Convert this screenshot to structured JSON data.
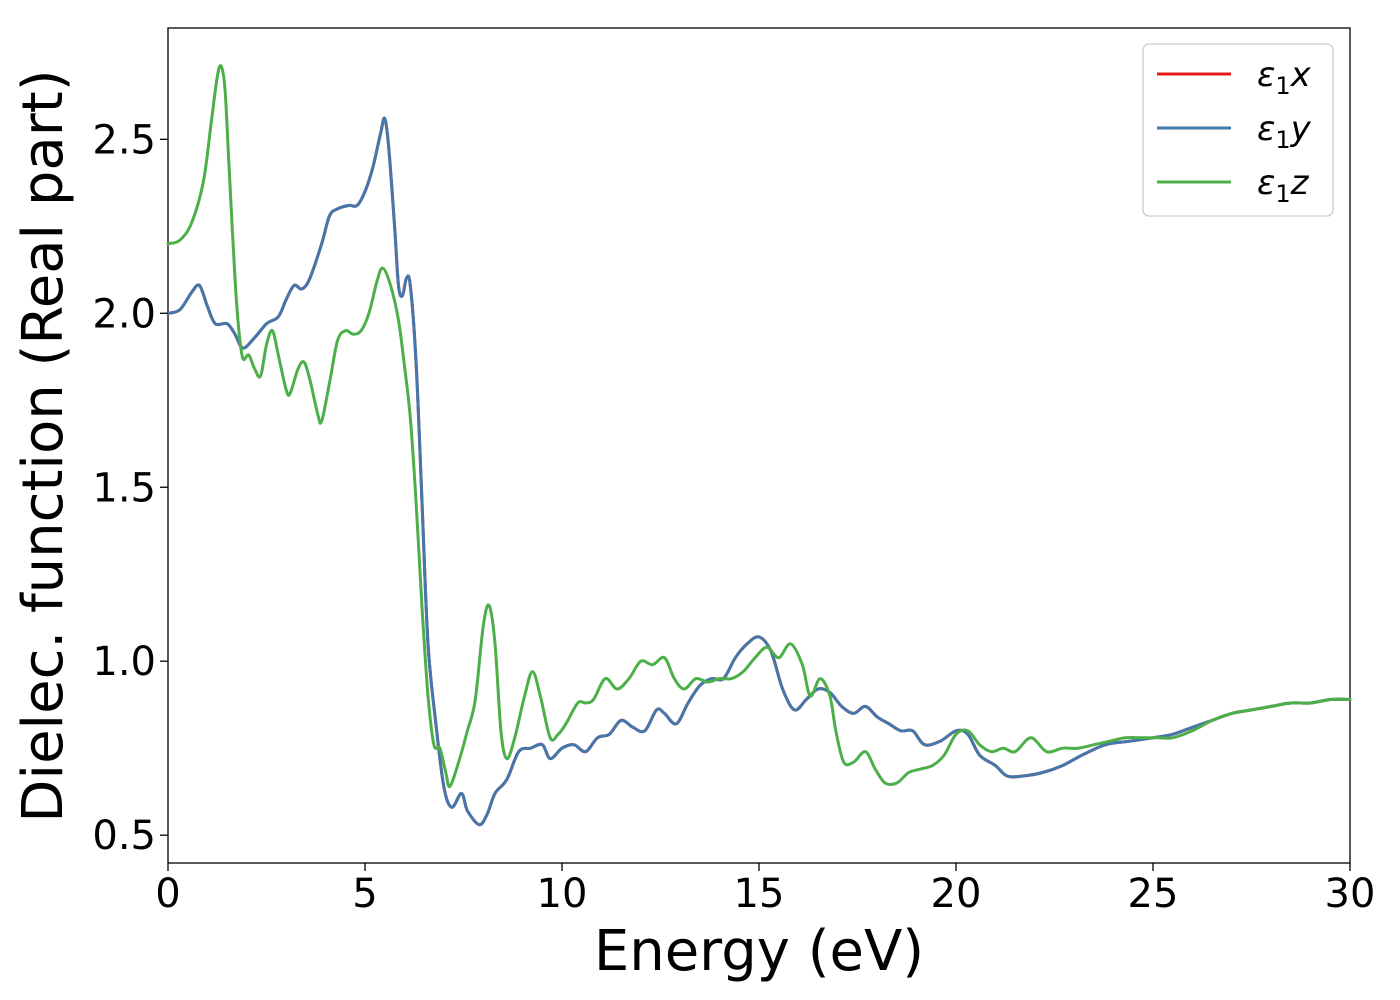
{
  "chart_data": {
    "type": "line",
    "xlabel": "Energy (eV)",
    "ylabel": "Dielec. function (Real part)",
    "xlim": [
      0,
      30
    ],
    "ylim": [
      0.42,
      2.82
    ],
    "xticks": [
      0,
      5,
      10,
      15,
      20,
      25,
      30
    ],
    "yticks": [
      0.5,
      1.0,
      1.5,
      2.0,
      2.5
    ],
    "xtick_labels": [
      "0",
      "5",
      "10",
      "15",
      "20",
      "25",
      "30"
    ],
    "ytick_labels": [
      "0.5",
      "1.0",
      "1.5",
      "2.0",
      "2.5"
    ],
    "grid": false,
    "legend_position": "top-right",
    "series": [
      {
        "name": "ε1x",
        "legend": {
          "base": "ε",
          "sub": "1",
          "suffix": "x"
        },
        "color": "#e41a1c",
        "same_as": "ε1y"
      },
      {
        "name": "ε1y",
        "legend": {
          "base": "ε",
          "sub": "1",
          "suffix": "y"
        },
        "color": "#4477aa",
        "points": [
          [
            0,
            2.0
          ],
          [
            0.3,
            2.01
          ],
          [
            0.6,
            2.06
          ],
          [
            0.8,
            2.08
          ],
          [
            1.0,
            2.02
          ],
          [
            1.2,
            1.97
          ],
          [
            1.5,
            1.97
          ],
          [
            1.7,
            1.94
          ],
          [
            1.9,
            1.9
          ],
          [
            2.2,
            1.93
          ],
          [
            2.5,
            1.97
          ],
          [
            2.8,
            1.99
          ],
          [
            3.0,
            2.04
          ],
          [
            3.2,
            2.08
          ],
          [
            3.4,
            2.07
          ],
          [
            3.6,
            2.1
          ],
          [
            3.9,
            2.2
          ],
          [
            4.1,
            2.28
          ],
          [
            4.3,
            2.3
          ],
          [
            4.6,
            2.31
          ],
          [
            4.8,
            2.31
          ],
          [
            5.0,
            2.35
          ],
          [
            5.2,
            2.42
          ],
          [
            5.4,
            2.52
          ],
          [
            5.5,
            2.56
          ],
          [
            5.6,
            2.48
          ],
          [
            5.75,
            2.25
          ],
          [
            5.85,
            2.08
          ],
          [
            5.95,
            2.05
          ],
          [
            6.05,
            2.1
          ],
          [
            6.15,
            2.08
          ],
          [
            6.3,
            1.85
          ],
          [
            6.45,
            1.45
          ],
          [
            6.6,
            1.05
          ],
          [
            6.8,
            0.82
          ],
          [
            7.0,
            0.64
          ],
          [
            7.2,
            0.58
          ],
          [
            7.45,
            0.62
          ],
          [
            7.6,
            0.57
          ],
          [
            7.9,
            0.53
          ],
          [
            8.1,
            0.56
          ],
          [
            8.3,
            0.62
          ],
          [
            8.6,
            0.66
          ],
          [
            8.9,
            0.74
          ],
          [
            9.2,
            0.75
          ],
          [
            9.5,
            0.76
          ],
          [
            9.7,
            0.72
          ],
          [
            10.0,
            0.75
          ],
          [
            10.3,
            0.76
          ],
          [
            10.6,
            0.74
          ],
          [
            10.9,
            0.78
          ],
          [
            11.2,
            0.79
          ],
          [
            11.5,
            0.83
          ],
          [
            11.8,
            0.81
          ],
          [
            12.1,
            0.8
          ],
          [
            12.4,
            0.86
          ],
          [
            12.6,
            0.85
          ],
          [
            12.9,
            0.82
          ],
          [
            13.2,
            0.88
          ],
          [
            13.5,
            0.93
          ],
          [
            13.8,
            0.95
          ],
          [
            14.1,
            0.95
          ],
          [
            14.4,
            1.01
          ],
          [
            14.7,
            1.05
          ],
          [
            15.0,
            1.07
          ],
          [
            15.3,
            1.03
          ],
          [
            15.6,
            0.92
          ],
          [
            15.9,
            0.86
          ],
          [
            16.2,
            0.89
          ],
          [
            16.5,
            0.92
          ],
          [
            16.8,
            0.91
          ],
          [
            17.1,
            0.87
          ],
          [
            17.4,
            0.85
          ],
          [
            17.7,
            0.87
          ],
          [
            18.0,
            0.84
          ],
          [
            18.3,
            0.82
          ],
          [
            18.6,
            0.8
          ],
          [
            18.9,
            0.8
          ],
          [
            19.2,
            0.76
          ],
          [
            19.6,
            0.77
          ],
          [
            20.0,
            0.8
          ],
          [
            20.3,
            0.79
          ],
          [
            20.6,
            0.73
          ],
          [
            21.0,
            0.7
          ],
          [
            21.3,
            0.67
          ],
          [
            21.7,
            0.67
          ],
          [
            22.2,
            0.68
          ],
          [
            22.7,
            0.7
          ],
          [
            23.2,
            0.73
          ],
          [
            23.8,
            0.76
          ],
          [
            24.4,
            0.77
          ],
          [
            25.0,
            0.78
          ],
          [
            25.5,
            0.79
          ],
          [
            26.0,
            0.81
          ],
          [
            26.5,
            0.83
          ],
          [
            27.0,
            0.85
          ],
          [
            27.5,
            0.86
          ],
          [
            28.0,
            0.87
          ],
          [
            28.5,
            0.88
          ],
          [
            29.0,
            0.88
          ],
          [
            29.5,
            0.89
          ],
          [
            30.0,
            0.89
          ]
        ]
      },
      {
        "name": "ε1z",
        "legend": {
          "base": "ε",
          "sub": "1",
          "suffix": "z"
        },
        "color": "#4daf4a",
        "points": [
          [
            0,
            2.2
          ],
          [
            0.3,
            2.21
          ],
          [
            0.6,
            2.26
          ],
          [
            0.9,
            2.38
          ],
          [
            1.1,
            2.55
          ],
          [
            1.25,
            2.68
          ],
          [
            1.35,
            2.71
          ],
          [
            1.45,
            2.64
          ],
          [
            1.55,
            2.42
          ],
          [
            1.7,
            2.1
          ],
          [
            1.8,
            1.95
          ],
          [
            1.9,
            1.87
          ],
          [
            2.05,
            1.88
          ],
          [
            2.2,
            1.84
          ],
          [
            2.35,
            1.82
          ],
          [
            2.5,
            1.91
          ],
          [
            2.65,
            1.95
          ],
          [
            2.8,
            1.88
          ],
          [
            3.0,
            1.78
          ],
          [
            3.1,
            1.77
          ],
          [
            3.3,
            1.84
          ],
          [
            3.45,
            1.86
          ],
          [
            3.6,
            1.81
          ],
          [
            3.8,
            1.71
          ],
          [
            3.9,
            1.69
          ],
          [
            4.1,
            1.8
          ],
          [
            4.3,
            1.92
          ],
          [
            4.5,
            1.95
          ],
          [
            4.7,
            1.94
          ],
          [
            4.9,
            1.95
          ],
          [
            5.1,
            2.0
          ],
          [
            5.3,
            2.09
          ],
          [
            5.45,
            2.13
          ],
          [
            5.65,
            2.08
          ],
          [
            5.85,
            1.98
          ],
          [
            6.0,
            1.85
          ],
          [
            6.15,
            1.7
          ],
          [
            6.3,
            1.45
          ],
          [
            6.45,
            1.15
          ],
          [
            6.6,
            0.9
          ],
          [
            6.75,
            0.76
          ],
          [
            6.9,
            0.75
          ],
          [
            7.05,
            0.68
          ],
          [
            7.15,
            0.64
          ],
          [
            7.35,
            0.7
          ],
          [
            7.6,
            0.8
          ],
          [
            7.8,
            0.89
          ],
          [
            8.0,
            1.1
          ],
          [
            8.15,
            1.16
          ],
          [
            8.3,
            1.05
          ],
          [
            8.45,
            0.8
          ],
          [
            8.6,
            0.72
          ],
          [
            8.8,
            0.78
          ],
          [
            9.05,
            0.9
          ],
          [
            9.25,
            0.97
          ],
          [
            9.45,
            0.9
          ],
          [
            9.7,
            0.78
          ],
          [
            9.9,
            0.79
          ],
          [
            10.1,
            0.82
          ],
          [
            10.4,
            0.88
          ],
          [
            10.6,
            0.88
          ],
          [
            10.8,
            0.89
          ],
          [
            11.1,
            0.95
          ],
          [
            11.4,
            0.92
          ],
          [
            11.7,
            0.95
          ],
          [
            12.0,
            1.0
          ],
          [
            12.3,
            0.99
          ],
          [
            12.6,
            1.01
          ],
          [
            12.85,
            0.95
          ],
          [
            13.1,
            0.92
          ],
          [
            13.4,
            0.95
          ],
          [
            13.7,
            0.94
          ],
          [
            14.0,
            0.95
          ],
          [
            14.3,
            0.95
          ],
          [
            14.6,
            0.97
          ],
          [
            14.9,
            1.01
          ],
          [
            15.2,
            1.04
          ],
          [
            15.5,
            1.01
          ],
          [
            15.8,
            1.05
          ],
          [
            16.1,
            0.99
          ],
          [
            16.3,
            0.9
          ],
          [
            16.55,
            0.95
          ],
          [
            16.8,
            0.9
          ],
          [
            16.95,
            0.8
          ],
          [
            17.15,
            0.71
          ],
          [
            17.4,
            0.71
          ],
          [
            17.7,
            0.74
          ],
          [
            17.95,
            0.69
          ],
          [
            18.2,
            0.65
          ],
          [
            18.5,
            0.65
          ],
          [
            18.8,
            0.68
          ],
          [
            19.1,
            0.69
          ],
          [
            19.4,
            0.7
          ],
          [
            19.7,
            0.73
          ],
          [
            20.0,
            0.79
          ],
          [
            20.3,
            0.8
          ],
          [
            20.6,
            0.76
          ],
          [
            20.9,
            0.74
          ],
          [
            21.2,
            0.75
          ],
          [
            21.5,
            0.74
          ],
          [
            21.9,
            0.78
          ],
          [
            22.3,
            0.74
          ],
          [
            22.7,
            0.75
          ],
          [
            23.1,
            0.75
          ],
          [
            23.5,
            0.76
          ],
          [
            23.9,
            0.77
          ],
          [
            24.3,
            0.78
          ],
          [
            24.7,
            0.78
          ],
          [
            25.1,
            0.78
          ],
          [
            25.5,
            0.78
          ],
          [
            26.0,
            0.8
          ],
          [
            26.5,
            0.83
          ],
          [
            27.0,
            0.85
          ],
          [
            27.5,
            0.86
          ],
          [
            28.0,
            0.87
          ],
          [
            28.5,
            0.88
          ],
          [
            29.0,
            0.88
          ],
          [
            29.5,
            0.89
          ],
          [
            30.0,
            0.89
          ]
        ]
      }
    ]
  }
}
